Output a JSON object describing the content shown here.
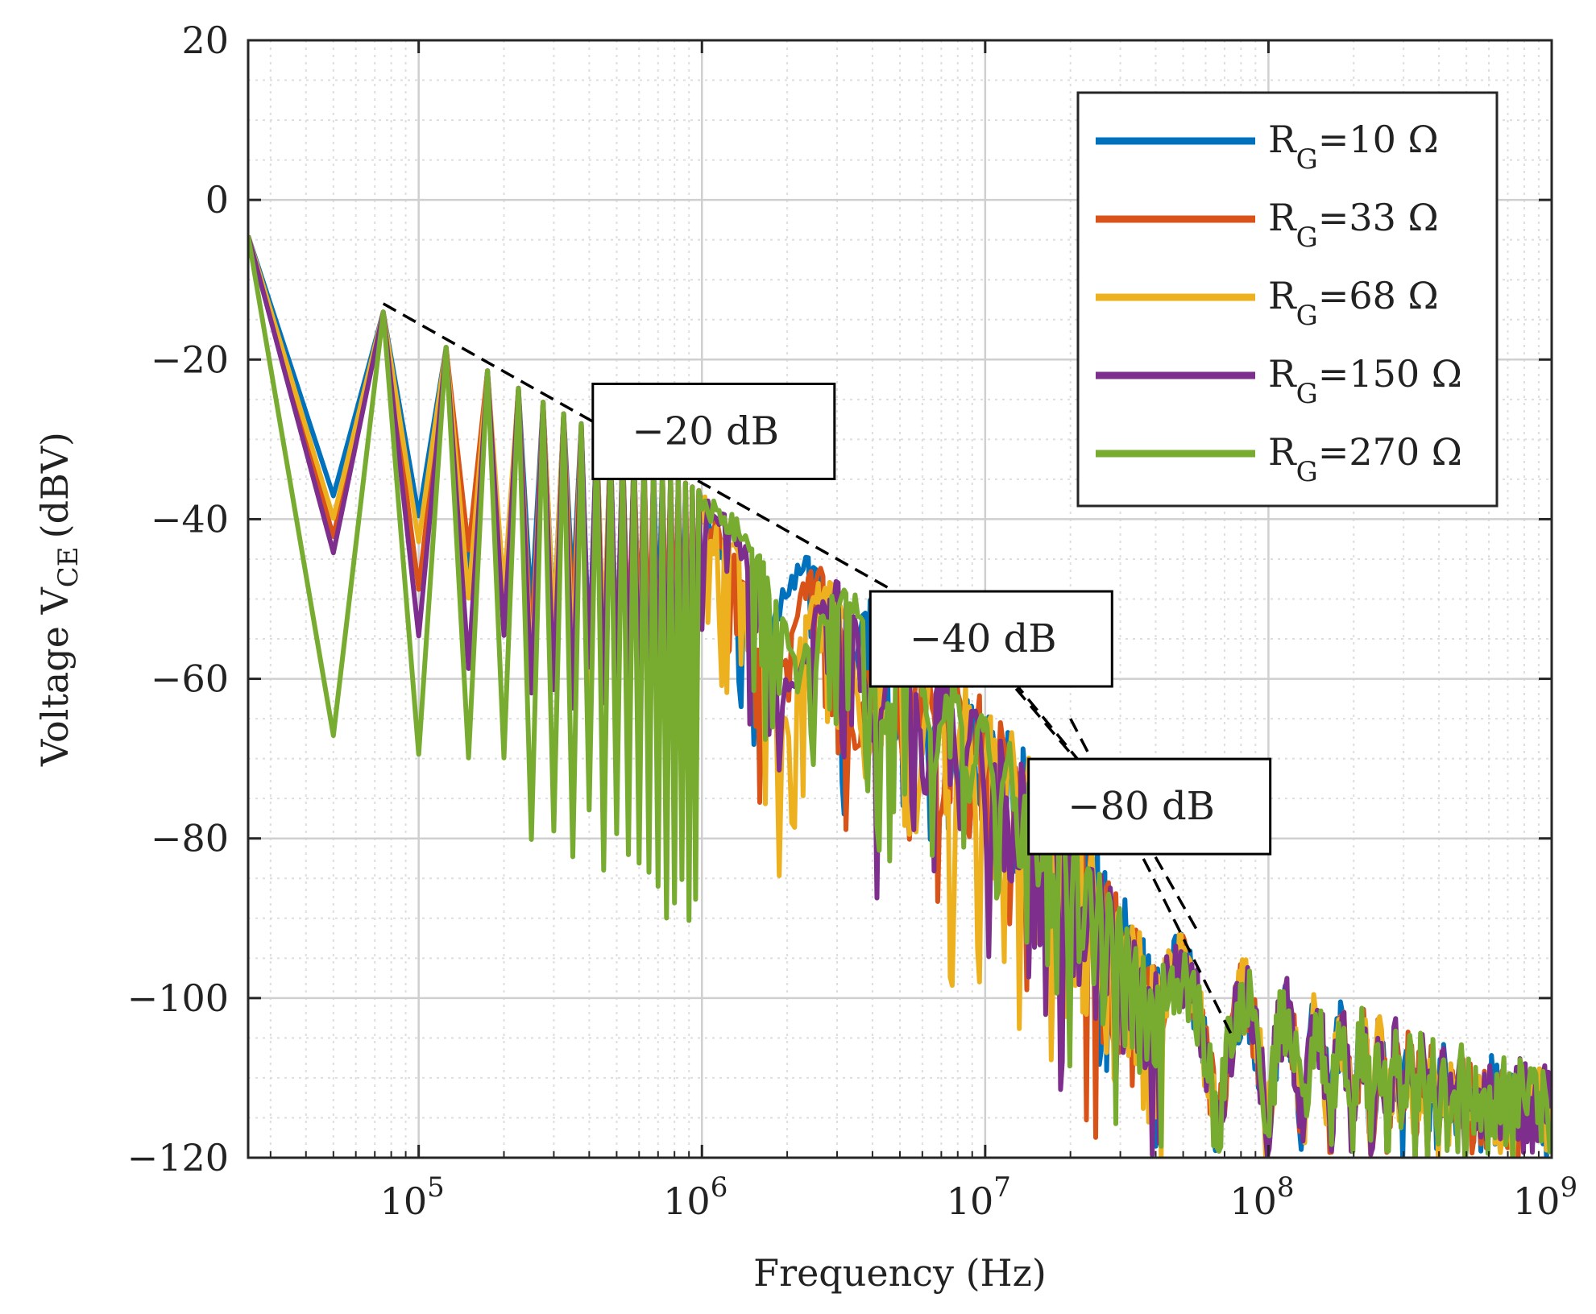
{
  "chart_data": {
    "type": "line",
    "xscale": "log",
    "xlabel": "Frequency (Hz)",
    "ylabel": "Voltage V",
    "ylabel_sub": "CE",
    "ylabel_unit": "(dBV)",
    "xlim": [
      25000,
      1000000000
    ],
    "ylim": [
      -120,
      20
    ],
    "grid": true,
    "minor_grid": true,
    "legend_position": "top-right",
    "x_ticks": [
      {
        "value": 100000,
        "base": "10",
        "exp": "5"
      },
      {
        "value": 1000000,
        "base": "10",
        "exp": "6"
      },
      {
        "value": 10000000,
        "base": "10",
        "exp": "7"
      },
      {
        "value": 100000000,
        "base": "10",
        "exp": "8"
      },
      {
        "value": 1000000000,
        "base": "10",
        "exp": "9"
      }
    ],
    "y_ticks": [
      {
        "value": 20,
        "label": "20"
      },
      {
        "value": 0,
        "label": "0"
      },
      {
        "value": -20,
        "label": "−20"
      },
      {
        "value": -40,
        "label": "−40"
      },
      {
        "value": -60,
        "label": "−60"
      },
      {
        "value": -80,
        "label": "−80"
      },
      {
        "value": -100,
        "label": "−100"
      },
      {
        "value": -120,
        "label": "−120"
      }
    ],
    "series": [
      {
        "name": "R_G=10 Ω",
        "label_main": "R",
        "label_sub": "G",
        "label_rest": "=10 Ω",
        "color": "#0072BD",
        "period_hz": 25000,
        "fc1": 7500000,
        "fc2": 25000000,
        "floor": -120,
        "lobe_depth": 7
      },
      {
        "name": "R_G=33 Ω",
        "label_main": "R",
        "label_sub": "G",
        "label_rest": "=33 Ω",
        "color": "#D95319",
        "period_hz": 25000,
        "fc1": 7000000,
        "fc2": 25000000,
        "floor": -120,
        "lobe_depth": 9
      },
      {
        "name": "R_G=68 Ω",
        "label_main": "R",
        "label_sub": "G",
        "label_rest": "=68 Ω",
        "color": "#EDB120",
        "period_hz": 25000,
        "fc1": 7000000,
        "fc2": 25000000,
        "floor": -120,
        "lobe_depth": 10
      },
      {
        "name": "R_G=150 Ω",
        "label_main": "R",
        "label_sub": "G",
        "label_rest": "=150 Ω",
        "color": "#7E2F8E",
        "period_hz": 25000,
        "fc1": 6000000,
        "fc2": 25000000,
        "floor": -120,
        "lobe_depth": 8
      },
      {
        "name": "R_G=270 Ω",
        "label_main": "R",
        "label_sub": "G",
        "label_rest": "=270 Ω",
        "color": "#77AC30",
        "period_hz": 25000,
        "fc1": 5500000,
        "fc2": 25000000,
        "floor": -120,
        "lobe_depth": 6
      }
    ],
    "asymptotes": [
      {
        "label": "−20 dB",
        "points": [
          [
            75000,
            -13
          ],
          [
            6000000,
            -51
          ]
        ]
      },
      {
        "label": "−40 dB",
        "points": [
          [
            6000000,
            -49
          ],
          [
            12000000,
            -60
          ],
          [
            38000000,
            -81
          ]
        ]
      },
      {
        "label": "−80 dB",
        "points": [
          [
            20000000,
            -65
          ],
          [
            38000000,
            -84
          ],
          [
            75000000,
            -105
          ]
        ]
      },
      {
        "label": "",
        "points": [
          [
            10000000,
            -56
          ],
          [
            38000000,
            -81
          ],
          [
            57000000,
            -92
          ]
        ]
      }
    ],
    "annotations": [
      {
        "text": "−20 dB",
        "anchor_x": 1100000,
        "anchor_y": -29
      },
      {
        "text": "−40 dB",
        "anchor_x": 10500000,
        "anchor_y": -55
      },
      {
        "text": "−80 dB",
        "anchor_x": 38000000,
        "anchor_y": -76
      }
    ]
  }
}
